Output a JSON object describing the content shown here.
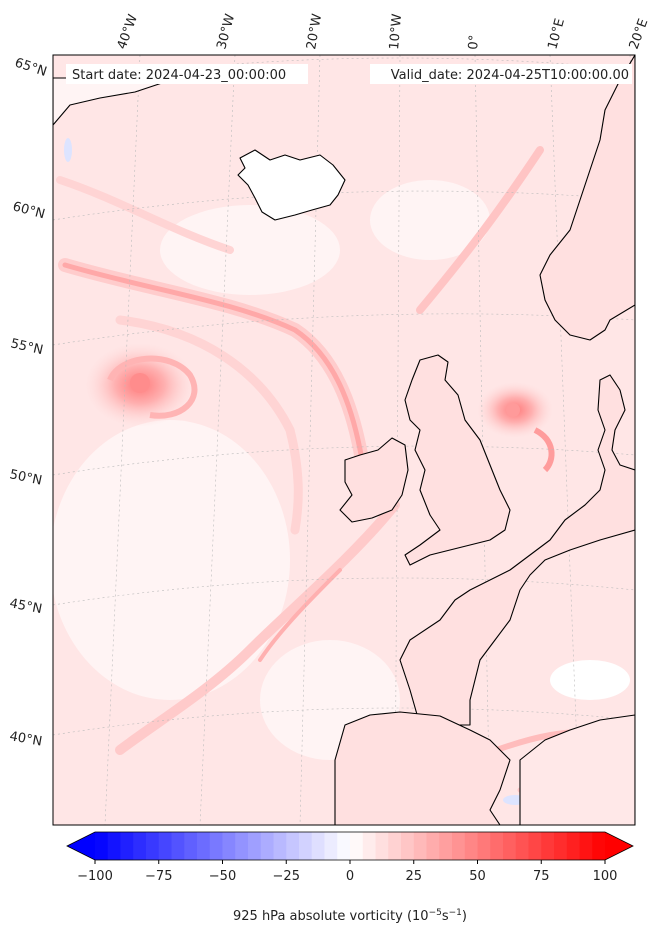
{
  "map": {
    "start_label": "Start date: 2024-04-23_00:00:00",
    "valid_label": "Valid_date: 2024-04-25T10:00:00.00",
    "lon_labels": [
      "40°W",
      "30°W",
      "20°W",
      "10°W",
      "0°",
      "10°E",
      "20°E"
    ],
    "lat_labels": [
      "65°N",
      "60°N",
      "55°N",
      "50°N",
      "45°N",
      "40°N"
    ]
  },
  "colorbar": {
    "title": "925 hPa absolute vorticity (10",
    "title_exp1": "−5",
    "title_mid": "s",
    "title_exp2": "−1",
    "title_end": ")",
    "min": -100,
    "max": 100,
    "ticks": [
      "−100",
      "−75",
      "−50",
      "−25",
      "0",
      "25",
      "50",
      "75",
      "100"
    ],
    "neg_color": "#0000ff",
    "pos_color": "#ff0000"
  }
}
